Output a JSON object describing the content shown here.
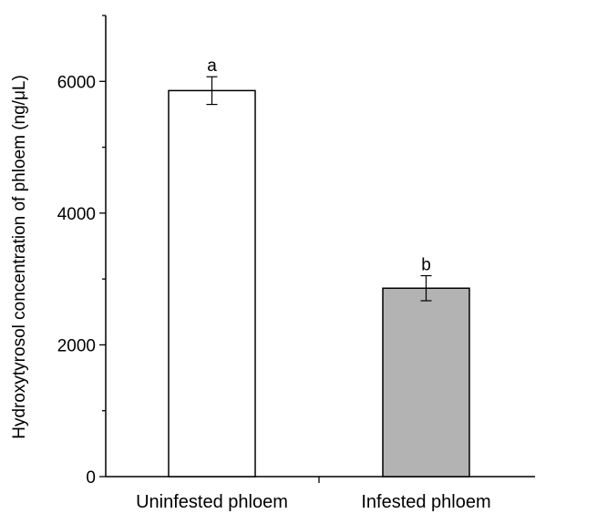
{
  "chart_data": {
    "type": "bar",
    "title": "",
    "xlabel": "",
    "ylabel": "Hydroxytyrosol concentration of phloem (ng/μL)",
    "categories": [
      "Uninfested phloem",
      "Infested phloem"
    ],
    "values": [
      5860,
      2860
    ],
    "errors": [
      210,
      190
    ],
    "significance_letters": [
      "a",
      "b"
    ],
    "bar_colors": [
      "#ffffff",
      "#b3b3b3"
    ],
    "ylim": [
      0,
      7000
    ],
    "yticks_major": [
      0,
      2000,
      4000,
      6000
    ],
    "yticks_major_labels": [
      "0",
      "2000",
      "4000",
      "6000"
    ],
    "yticks_minor": [
      1000,
      3000,
      5000,
      7000
    ],
    "grid": false,
    "legend": "none"
  }
}
